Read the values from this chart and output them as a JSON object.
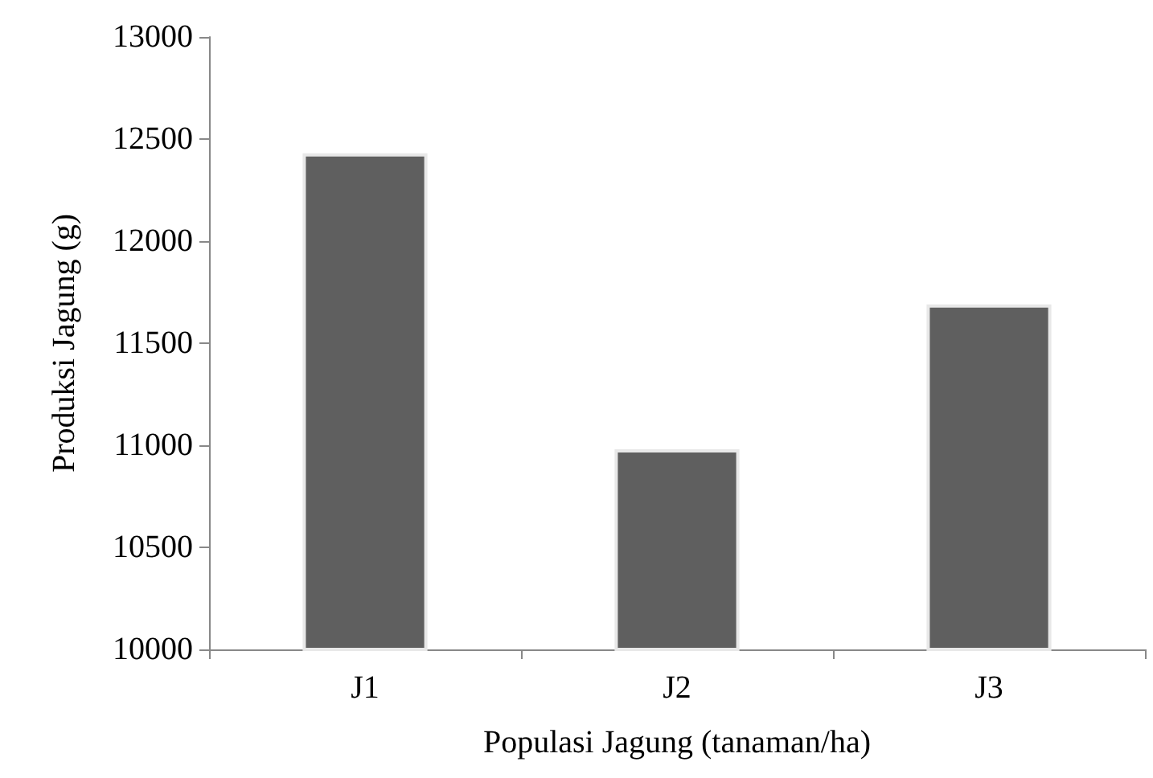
{
  "chart_data": {
    "type": "bar",
    "xlabel": "Populasi Jagung (tanaman/ha)",
    "ylabel": "Produksi Jagung (g)",
    "categories": [
      "J1",
      "J2",
      "J3"
    ],
    "values": [
      12430,
      10980,
      11690
    ],
    "color": "#5f5f5f",
    "ylim": [
      10000,
      13000
    ],
    "yticks": [
      10000,
      10500,
      11000,
      11500,
      12000,
      12500,
      13000
    ],
    "grid": false
  }
}
